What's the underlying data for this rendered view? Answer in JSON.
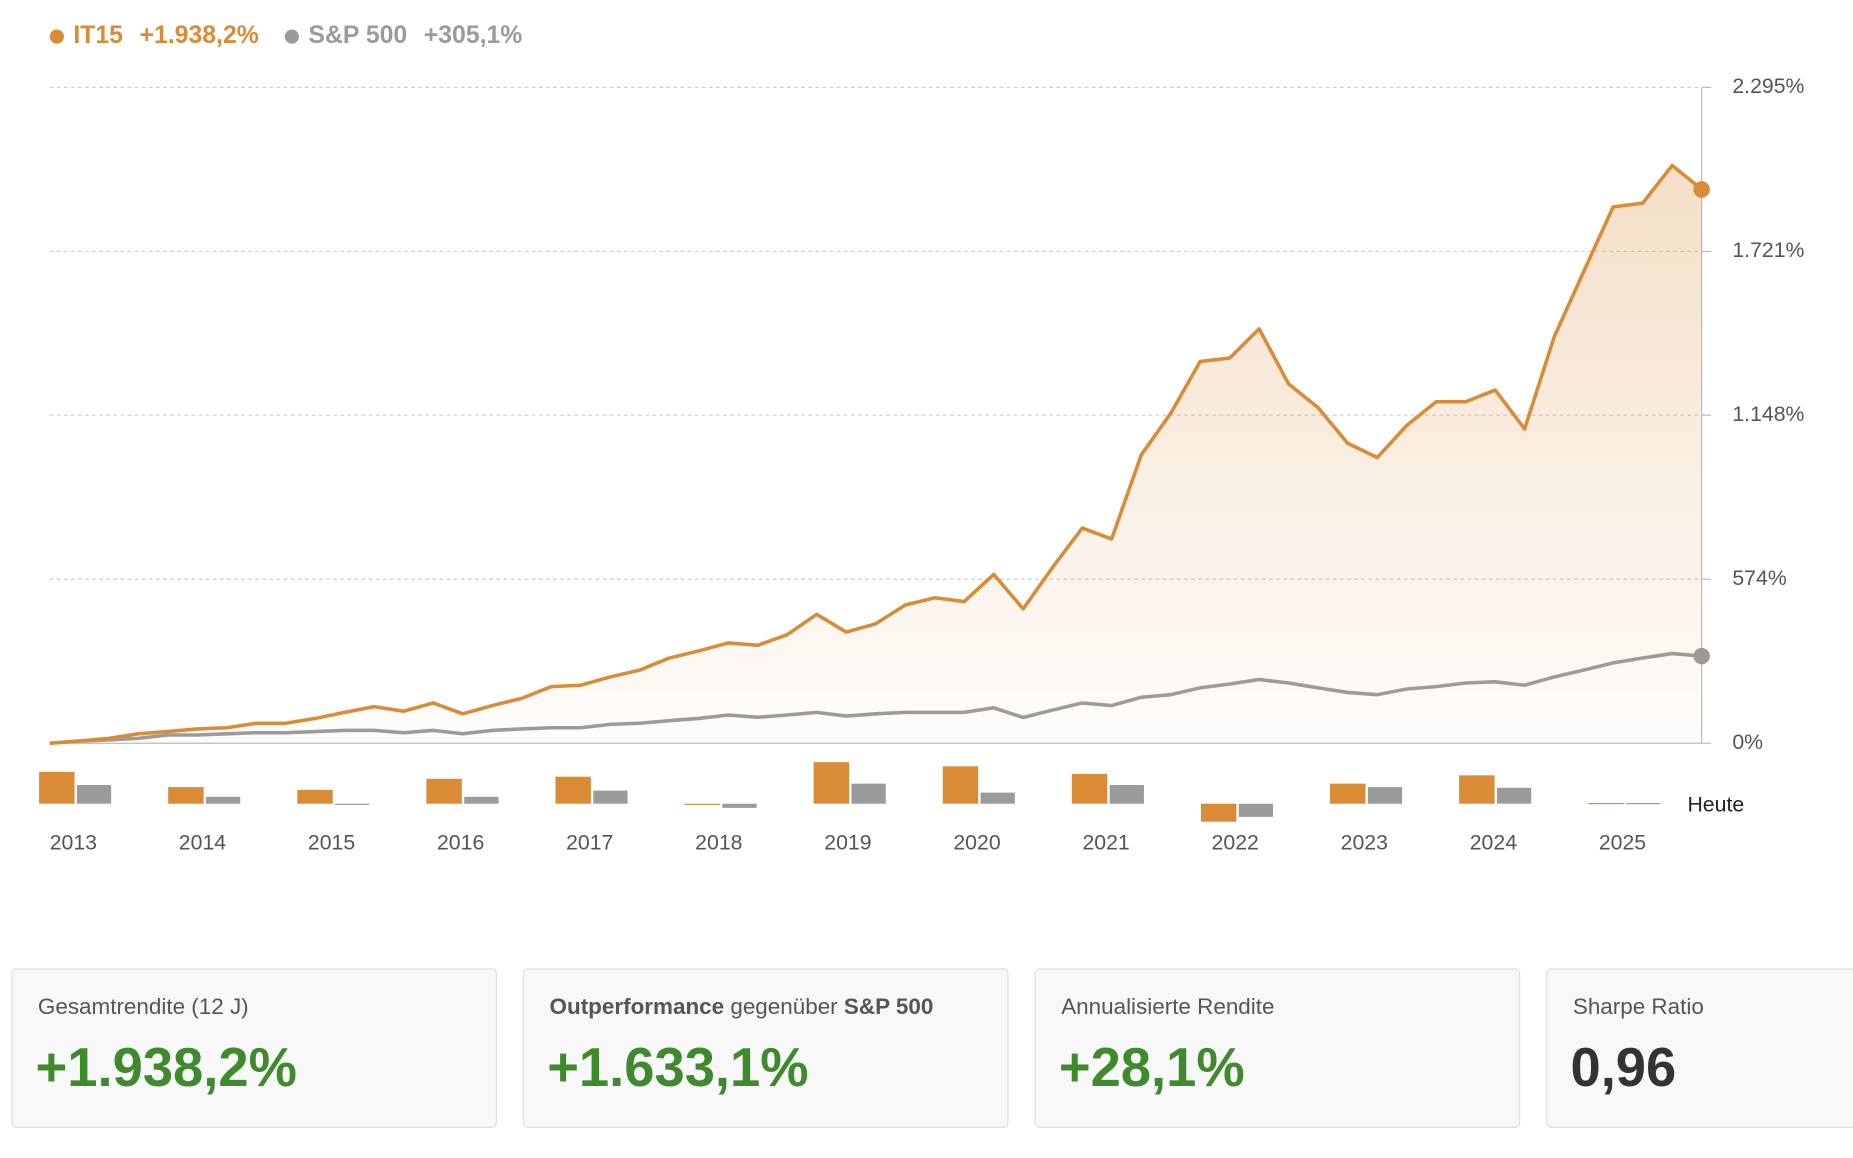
{
  "chart_data": [
    {
      "type": "line",
      "series": [
        {
          "name": "IT15",
          "total_label": "+1.938,2%",
          "color": "#d98b36",
          "area": true,
          "values": [
            0,
            8,
            17,
            33,
            41,
            50,
            54,
            70,
            70,
            87,
            108,
            128,
            112,
            141,
            103,
            132,
            157,
            198,
            203,
            232,
            256,
            298,
            323,
            351,
            343,
            380,
            451,
            389,
            418,
            484,
            509,
            496,
            591,
            470,
            616,
            753,
            715,
            1009,
            1154,
            1336,
            1348,
            1450,
            1257,
            1174,
            1050,
            1000,
            1112,
            1195,
            1195,
            1236,
            1100,
            1422,
            1650,
            1877,
            1890,
            2022,
            1938
          ]
        },
        {
          "name": "S&P 500",
          "total_label": "+305,1%",
          "color": "#9b9b9b",
          "area": false,
          "values": [
            0,
            8,
            12,
            17,
            29,
            29,
            33,
            37,
            37,
            41,
            45,
            45,
            37,
            45,
            33,
            45,
            50,
            54,
            54,
            66,
            70,
            79,
            87,
            99,
            91,
            99,
            108,
            95,
            103,
            108,
            108,
            108,
            124,
            90,
            116,
            141,
            132,
            161,
            170,
            194,
            207,
            223,
            211,
            194,
            178,
            170,
            190,
            198,
            211,
            215,
            203,
            232,
            256,
            281,
            298,
            314,
            305
          ]
        }
      ],
      "ylim": [
        0,
        2295
      ],
      "yticks": [
        {
          "value": 0,
          "label": "0%"
        },
        {
          "value": 574,
          "label": "574%"
        },
        {
          "value": 1148,
          "label": "1.148%"
        },
        {
          "value": 1721,
          "label": "1.721%"
        },
        {
          "value": 2295,
          "label": "2.295%"
        }
      ],
      "grid": true,
      "end_label": "Heute"
    },
    {
      "type": "bar",
      "categories": [
        "2013",
        "2014",
        "2015",
        "2016",
        "2017",
        "2018",
        "2019",
        "2020",
        "2021",
        "2022",
        "2023",
        "2024",
        "2025"
      ],
      "series": [
        {
          "color": "#d98b36",
          "values": [
            46,
            24,
            20,
            36,
            39,
            -1,
            60,
            54,
            43,
            -26,
            29,
            41,
            1
          ]
        },
        {
          "color": "#9b9b9b",
          "values": [
            27,
            10,
            -1,
            10,
            19,
            -6,
            29,
            16,
            27,
            -19,
            24,
            23,
            1
          ]
        }
      ],
      "ylim": [
        -27,
        60
      ]
    }
  ],
  "stats": [
    {
      "label_parts": [
        {
          "text": "Gesamtrendite (12 J)",
          "bold": false
        }
      ],
      "value": "+1.938,2%",
      "color": "#3e8a2c"
    },
    {
      "label_parts": [
        {
          "text": "Outperformance",
          "bold": true
        },
        {
          "text": " gegenüber ",
          "bold": false
        },
        {
          "text": "S&P 500",
          "bold": true
        }
      ],
      "value": "+1.633,1%",
      "color": "#3e8a2c"
    },
    {
      "label_parts": [
        {
          "text": "Annualisierte Rendite",
          "bold": false
        }
      ],
      "value": "+28,1%",
      "color": "#3e8a2c"
    },
    {
      "label_parts": [
        {
          "text": "Sharpe Ratio",
          "bold": false
        }
      ],
      "value": "0,96",
      "color": "#333333"
    }
  ]
}
